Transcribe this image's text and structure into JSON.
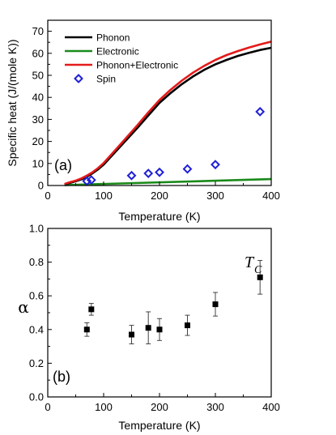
{
  "chart_data": [
    {
      "type": "line",
      "panel_label": "(a)",
      "xlabel": "Temperature (K)",
      "ylabel": "Specific heat (J/(mole K))",
      "xlim": [
        0,
        400
      ],
      "ylim": [
        0,
        75
      ],
      "xticks": [
        0,
        100,
        200,
        300,
        400
      ],
      "yticks": [
        0,
        10,
        20,
        30,
        40,
        50,
        60,
        70
      ],
      "legend_position": "top-left",
      "series": [
        {
          "name": "Phonon",
          "style": "line",
          "color": "#000000",
          "x": [
            30,
            40,
            50,
            60,
            70,
            80,
            90,
            100,
            120,
            140,
            160,
            180,
            200,
            220,
            240,
            260,
            280,
            300,
            320,
            340,
            360,
            380,
            400
          ],
          "y": [
            0.5,
            1.2,
            1.9,
            2.8,
            4.0,
            5.5,
            7.3,
            9.5,
            15.0,
            20.5,
            26.0,
            31.8,
            37.5,
            42.0,
            46.0,
            49.5,
            52.5,
            55.0,
            57.0,
            58.8,
            60.2,
            61.5,
            62.5
          ]
        },
        {
          "name": "Electronic",
          "style": "line",
          "color": "#1a8a1a",
          "x": [
            30,
            400
          ],
          "y": [
            0.2,
            2.9
          ]
        },
        {
          "name": "Phonon+Electronic",
          "style": "line",
          "color": "#e41a1a",
          "x": [
            30,
            40,
            50,
            60,
            70,
            80,
            90,
            100,
            120,
            140,
            160,
            180,
            200,
            220,
            240,
            260,
            280,
            300,
            320,
            340,
            360,
            380,
            400
          ],
          "y": [
            0.7,
            1.5,
            2.2,
            3.2,
            4.5,
            6.0,
            7.9,
            10.2,
            15.8,
            21.5,
            27.2,
            33.2,
            38.8,
            43.5,
            47.6,
            51.2,
            54.3,
            57.0,
            59.2,
            61.0,
            62.6,
            64.0,
            65.3
          ]
        },
        {
          "name": "Spin",
          "style": "marker",
          "color": "#1f1fd6",
          "x": [
            70,
            78,
            150,
            180,
            200,
            250,
            300,
            380
          ],
          "y": [
            2.0,
            2.5,
            4.5,
            5.5,
            6.0,
            7.5,
            9.5,
            33.5
          ]
        }
      ]
    },
    {
      "type": "scatter",
      "panel_label": "(b)",
      "xlabel": "Temperature (K)",
      "ylabel": "α",
      "xlim": [
        0,
        400
      ],
      "ylim": [
        0.0,
        1.0
      ],
      "xticks": [
        0,
        100,
        200,
        300,
        400
      ],
      "yticks": [
        0.0,
        0.2,
        0.4,
        0.6,
        0.8,
        1.0
      ],
      "annotation": "T",
      "annotation_sub": "C",
      "series": [
        {
          "color": "#000000",
          "x": [
            70,
            78,
            150,
            180,
            200,
            250,
            300,
            380
          ],
          "y": [
            0.4,
            0.52,
            0.37,
            0.41,
            0.4,
            0.425,
            0.55,
            0.71
          ],
          "err": [
            0.04,
            0.035,
            0.055,
            0.095,
            0.065,
            0.06,
            0.07,
            0.1
          ]
        }
      ]
    }
  ]
}
